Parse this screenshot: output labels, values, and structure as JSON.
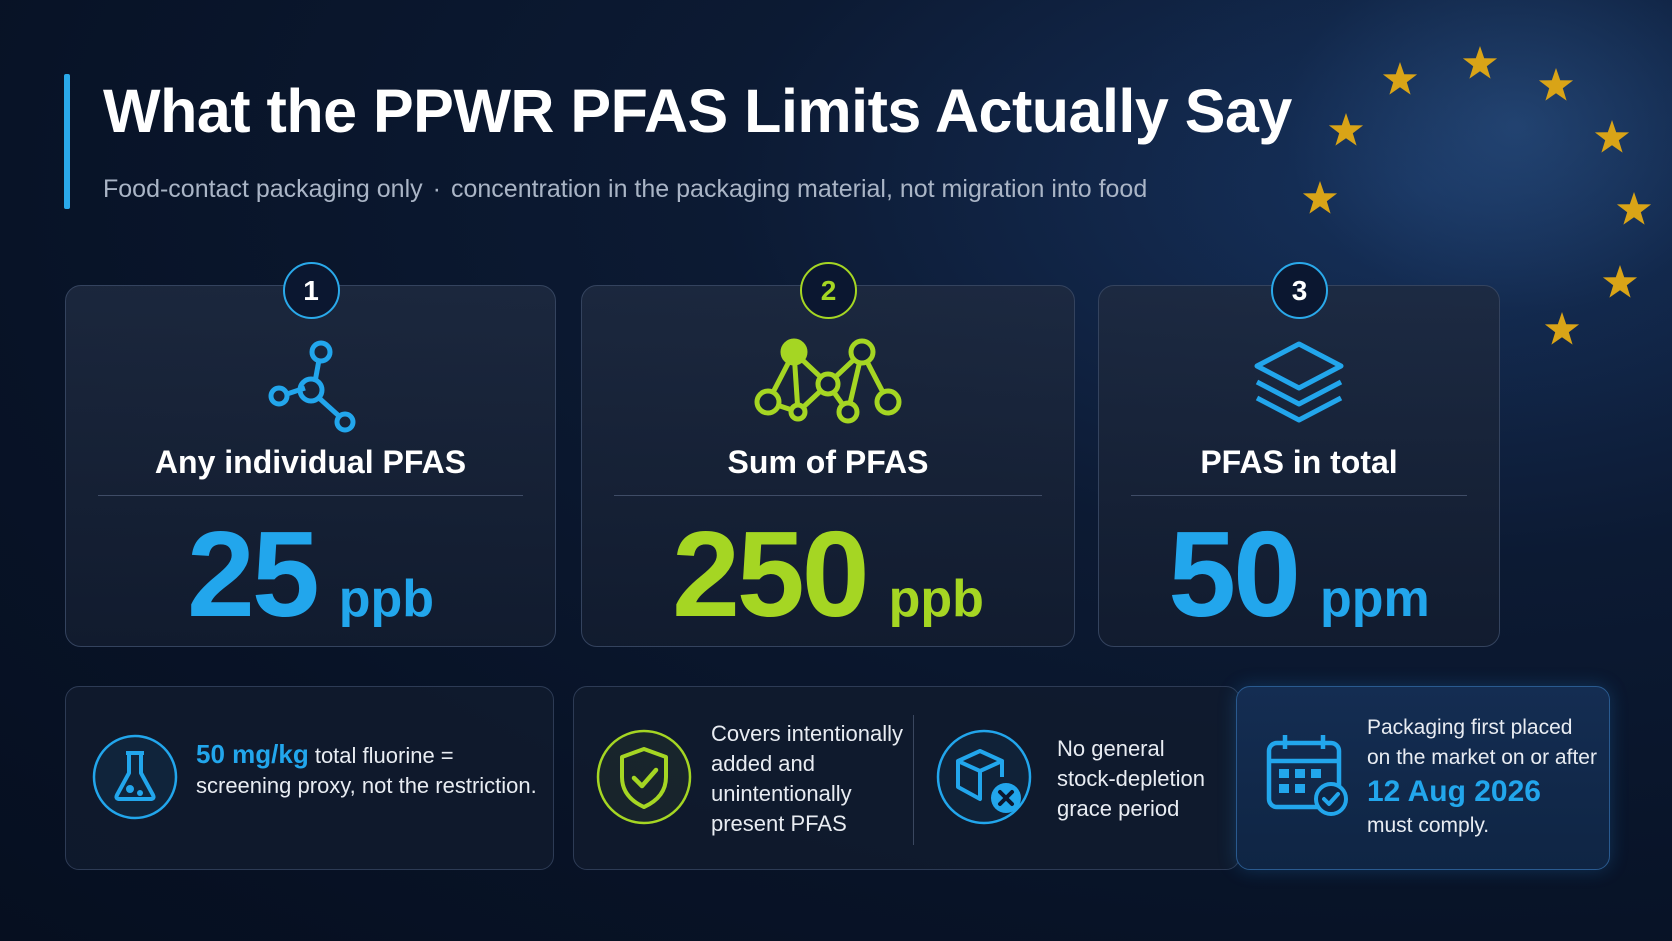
{
  "title": "What the PPWR PFAS Limits Actually Say",
  "subtitle": {
    "part1": "Food-contact packaging only",
    "separator": "·",
    "part2": "concentration in the packaging material, not migration into food"
  },
  "colors": {
    "accent_blue": "#22a6ec",
    "accent_green": "#a5d623",
    "background": "#081327",
    "eu_star": "#d9a417"
  },
  "cards": [
    {
      "number": "1",
      "icon": "molecule-icon",
      "label": "Any individual PFAS",
      "value": "25",
      "unit": "ppb",
      "color": "blue"
    },
    {
      "number": "2",
      "icon": "molecule-chain-icon",
      "label": "Sum of PFAS",
      "value": "250",
      "unit": "ppb",
      "color": "green"
    },
    {
      "number": "3",
      "icon": "layers-icon",
      "label": "PFAS in total",
      "value": "50",
      "unit": "ppm",
      "color": "blue"
    }
  ],
  "notes": {
    "fluorine": {
      "icon": "flask-icon",
      "highlight": "50 mg/kg",
      "text_a": " total fluorine =",
      "text_b": "screening proxy, not the restriction."
    },
    "scope": {
      "icon": "shield-check-icon",
      "line1": "Covers intentionally",
      "line2": "added and",
      "line3": "unintentionally",
      "line4": "present PFAS"
    },
    "grace": {
      "icon": "box-x-icon",
      "line1": "No general",
      "line2": "stock-depletion",
      "line3": "grace period"
    },
    "date": {
      "icon": "calendar-check-icon",
      "line1": "Packaging first placed",
      "line2": "on the market on or after",
      "date": "12 Aug 2026",
      "line3": "must comply."
    }
  }
}
